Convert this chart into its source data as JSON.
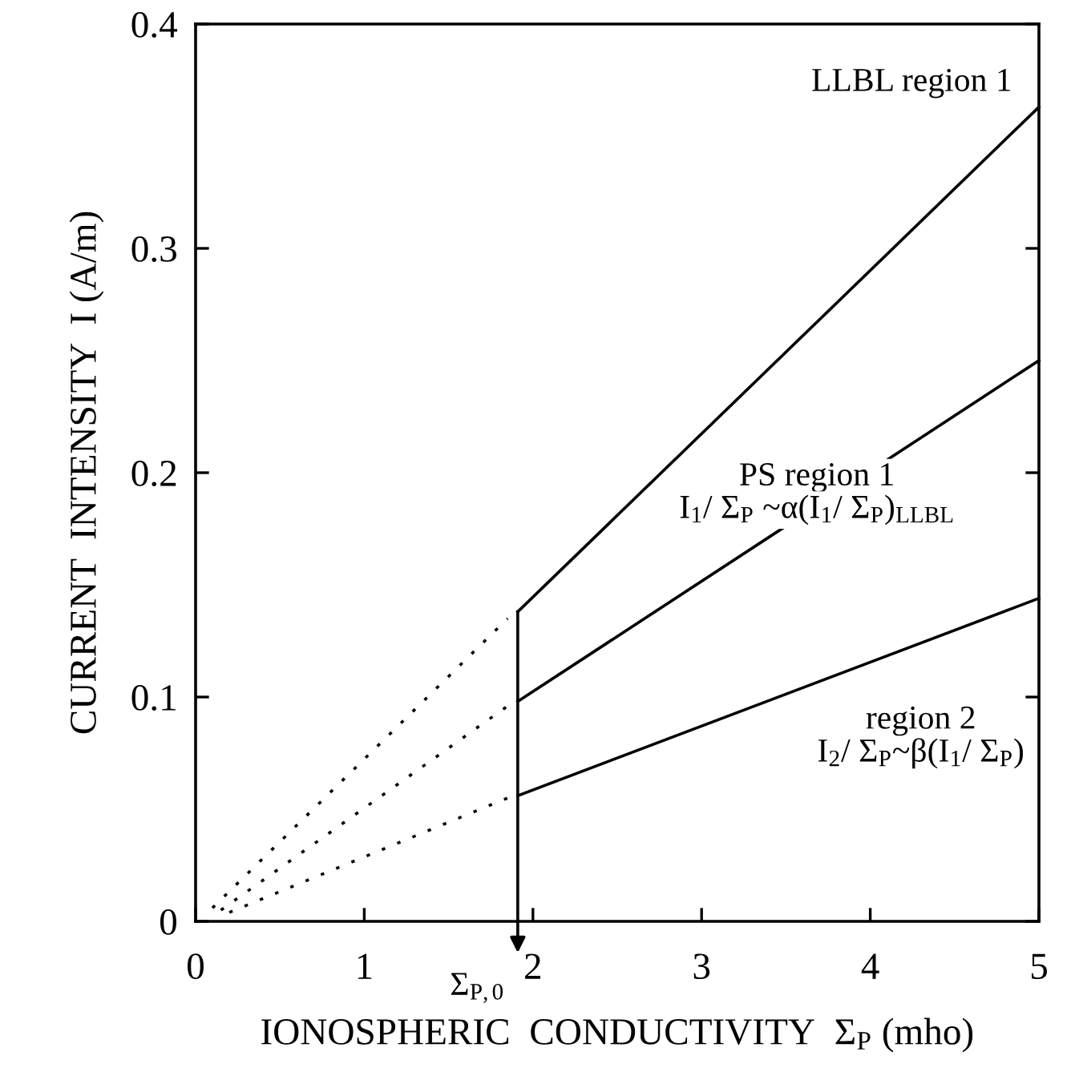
{
  "chart_data": {
    "type": "line",
    "xlabel": "IONOSPHERIC  CONDUCTIVITY  Σ$_{P}$ (mho)",
    "ylabel": "CURRENT  INTENSITY  I (A/m)",
    "xlim": [
      0,
      5
    ],
    "ylim": [
      0,
      0.4
    ],
    "xticks": [
      0,
      1,
      2,
      3,
      4,
      5
    ],
    "yticks": [
      0,
      0.1,
      0.2,
      0.3,
      0.4
    ],
    "grid": false,
    "legend": false,
    "marker": "none",
    "series": [
      {
        "color": "#000000",
        "x": [
          1.91,
          5
        ],
        "values": [
          0.138,
          0.363
        ],
        "line_style": "solid"
      },
      {
        "color": "#000000",
        "x": [
          1.91,
          5
        ],
        "values": [
          0.098,
          0.25
        ],
        "line_style": "solid"
      },
      {
        "color": "#000000",
        "x": [
          1.91,
          5
        ],
        "values": [
          0.056,
          0.144
        ],
        "line_style": "solid"
      },
      {
        "color": "#000000",
        "x": [
          0.1,
          1.85
        ],
        "values": [
          0.006,
          0.135
        ],
        "line_style": "dotted"
      },
      {
        "color": "#000000",
        "x": [
          0.15,
          1.85
        ],
        "values": [
          0.005,
          0.096
        ],
        "line_style": "dotted"
      },
      {
        "color": "#000000",
        "x": [
          0.2,
          1.85
        ],
        "values": [
          0.004,
          0.055
        ],
        "line_style": "dotted"
      },
      {
        "color": "#000000",
        "x": [
          1.91,
          1.91
        ],
        "values": [
          0.138,
          0
        ],
        "line_style": "solid"
      }
    ],
    "annotations": [
      {
        "text": "LLBL region 1",
        "x": 5,
        "y": 0.363
      },
      {
        "text": "PS region 1",
        "x": 3.75,
        "y": 0.189
      },
      "I$_{1}$/ Σ$_{P}$ ~α(I$_{1}$/ Σ$_{P}$)$_{LLBL}$",
      {
        "text": "region 2",
        "x": 4.3,
        "y": 0.124
      },
      "I$_{2}$/ Σ$_{P}$~β(I$_{1}$/ Σ$_{P}$)",
      {
        "text": "Σ$_{P,0}$",
        "x": 1.91,
        "y": 0
      }
    ]
  }
}
